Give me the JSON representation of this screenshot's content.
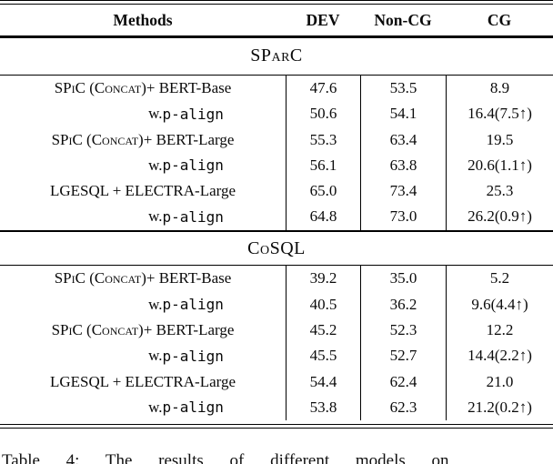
{
  "page": {
    "background": "#ffffff",
    "text_color": "#0a0a0a"
  },
  "table": {
    "columns": [
      "Methods",
      "DEV",
      "Non-CG",
      "CG"
    ],
    "sections": [
      {
        "name": "SParC",
        "rows": [
          {
            "type": "model",
            "method_sc": "SPiC (Concat)",
            "method_rest": " + BERT-Base",
            "dev": "47.6",
            "non_cg": "53.5",
            "cg": "8.9"
          },
          {
            "type": "variant",
            "method_prefix": "w. ",
            "method_code": "p-align",
            "dev": "50.6",
            "non_cg": "54.1",
            "cg": "16.4(7.5↑)"
          },
          {
            "type": "model",
            "method_sc": "SPiC (Concat)",
            "method_rest": " + BERT-Large",
            "dev": "55.3",
            "non_cg": "63.4",
            "cg": "19.5"
          },
          {
            "type": "variant",
            "method_prefix": "w. ",
            "method_code": "p-align",
            "dev": "56.1",
            "non_cg": "63.8",
            "cg": "20.6(1.1↑)"
          },
          {
            "type": "model",
            "method_sc": "",
            "method_rest": "LGESQL + ELECTRA-Large",
            "dev": "65.0",
            "non_cg": "73.4",
            "cg": "25.3"
          },
          {
            "type": "variant",
            "method_prefix": "w. ",
            "method_code": "p-align",
            "dev": "64.8",
            "non_cg": "73.0",
            "cg": "26.2(0.9↑)"
          }
        ]
      },
      {
        "name": "CoSQL",
        "rows": [
          {
            "type": "model",
            "method_sc": "SPiC (Concat)",
            "method_rest": " + BERT-Base",
            "dev": "39.2",
            "non_cg": "35.0",
            "cg": "5.2"
          },
          {
            "type": "variant",
            "method_prefix": "w. ",
            "method_code": "p-align",
            "dev": "40.5",
            "non_cg": "36.2",
            "cg": "9.6(4.4↑)"
          },
          {
            "type": "model",
            "method_sc": "SPiC (Concat)",
            "method_rest": " + BERT-Large",
            "dev": "45.2",
            "non_cg": "52.3",
            "cg": "12.2"
          },
          {
            "type": "variant",
            "method_prefix": "w. ",
            "method_code": "p-align",
            "dev": "45.5",
            "non_cg": "52.7",
            "cg": "14.4(2.2↑)"
          },
          {
            "type": "model",
            "method_sc": "",
            "method_rest": "LGESQL + ELECTRA-Large",
            "dev": "54.4",
            "non_cg": "62.4",
            "cg": "21.0"
          },
          {
            "type": "variant",
            "method_prefix": "w. ",
            "method_code": "p-align",
            "dev": "53.8",
            "non_cg": "62.3",
            "cg": "21.2(0.2↑)"
          }
        ]
      }
    ]
  },
  "caption": {
    "visible_fragment": "Table 4: The results of different models on"
  }
}
